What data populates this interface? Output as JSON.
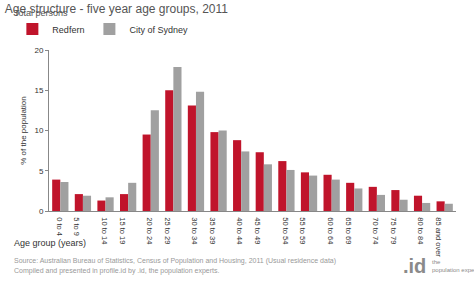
{
  "chart_data": {
    "type": "bar",
    "title": "Age structure - five year age groups, 2011",
    "subtitle": "Total persons",
    "y_label": "% of the population",
    "x_label": "Age group (years)",
    "categories": [
      "0 to 4",
      "5 to 9",
      "10 to 14",
      "15 to 19",
      "20 to 24",
      "25 to 29",
      "30 to 34",
      "35 to 39",
      "40 to 44",
      "45 to 49",
      "50 to 54",
      "55 to 59",
      "60 to 64",
      "65 to 69",
      "70 to 74",
      "75 to 79",
      "80 to 84",
      "85 and over"
    ],
    "series": [
      {
        "name": "Redfern",
        "color": "#c0142b",
        "values": [
          3.9,
          2.1,
          1.3,
          2.1,
          9.5,
          15.0,
          13.1,
          9.8,
          8.8,
          7.3,
          6.2,
          4.8,
          4.5,
          3.5,
          3.0,
          2.6,
          1.9,
          1.2
        ]
      },
      {
        "name": "City of Sydney",
        "color": "#a0a0a0",
        "values": [
          3.6,
          1.9,
          1.7,
          3.5,
          12.5,
          17.9,
          14.8,
          10.0,
          7.4,
          5.8,
          5.1,
          4.4,
          3.9,
          2.8,
          2.0,
          1.4,
          1.0,
          0.9
        ]
      }
    ],
    "ylim": [
      0,
      20
    ],
    "yticks": [
      0,
      5,
      10,
      15,
      20
    ],
    "grid": false,
    "legend": "top-left",
    "annotations": [
      "Source: Australian Bureau of Statistics, Census of Population and Housing, 2011 (Usual residence data)",
      "Compiled and presented in profile.id by .id, the population experts.",
      ".id",
      "the population experts"
    ]
  }
}
